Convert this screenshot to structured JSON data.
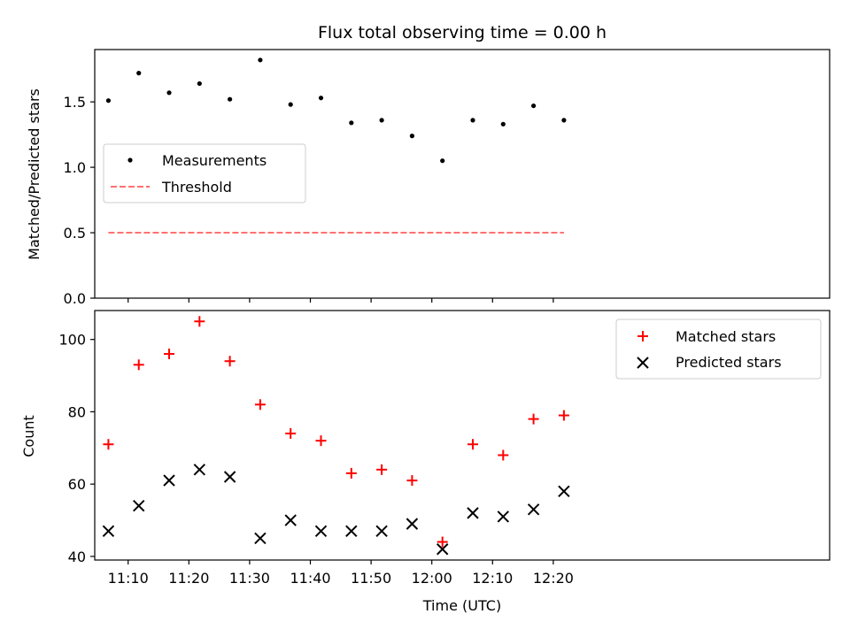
{
  "chart_data": [
    {
      "type": "scatter",
      "title": "Flux total observing time = 0.00 h",
      "xlabel": "",
      "ylabel": "Matched/Predicted stars",
      "xlim_minutes_of_day": [
        664.5,
        785.5
      ],
      "ylim": [
        0,
        1.9
      ],
      "yticks": [
        0.0,
        0.5,
        1.0,
        1.5
      ],
      "ytick_labels": [
        "0.0",
        "0.5",
        "1.0",
        "1.5"
      ],
      "x_time": [
        "11:06:45",
        "11:11:45",
        "11:16:45",
        "11:21:45",
        "11:26:45",
        "11:31:45",
        "11:36:45",
        "11:41:45",
        "11:46:45",
        "11:51:45",
        "11:56:45",
        "12:01:45",
        "12:06:45",
        "12:11:45",
        "12:16:45",
        "12:21:45"
      ],
      "series": [
        {
          "name": "Measurements",
          "marker": "dot",
          "color": "#000000",
          "values": [
            1.51,
            1.72,
            1.57,
            1.64,
            1.52,
            1.82,
            1.48,
            1.53,
            1.34,
            1.36,
            1.24,
            1.05,
            1.36,
            1.33,
            1.47,
            1.36
          ]
        },
        {
          "name": "Threshold",
          "marker": "dashed-line",
          "color": "#ff7070",
          "values": [
            0.5,
            0.5
          ]
        }
      ],
      "legend_position": "center-left",
      "grid": false
    },
    {
      "type": "scatter",
      "title": "",
      "xlabel": "Time (UTC)",
      "ylabel": "Count",
      "xlim_minutes_of_day": [
        664.5,
        785.5
      ],
      "ylim": [
        39,
        108
      ],
      "yticks": [
        40,
        60,
        80,
        100
      ],
      "ytick_labels": [
        "40",
        "60",
        "80",
        "100"
      ],
      "xticks": [
        "11:10",
        "11:20",
        "11:30",
        "11:40",
        "11:50",
        "12:00",
        "12:10",
        "12:20"
      ],
      "x_time": [
        "11:06:45",
        "11:11:45",
        "11:16:45",
        "11:21:45",
        "11:26:45",
        "11:31:45",
        "11:36:45",
        "11:41:45",
        "11:46:45",
        "11:51:45",
        "11:56:45",
        "12:01:45",
        "12:06:45",
        "12:11:45",
        "12:16:45",
        "12:21:45"
      ],
      "series": [
        {
          "name": "Matched stars",
          "marker": "plus",
          "color": "#ff0000",
          "values": [
            71,
            93,
            96,
            105,
            94,
            82,
            74,
            72,
            63,
            64,
            61,
            44,
            71,
            68,
            78,
            79
          ]
        },
        {
          "name": "Predicted stars",
          "marker": "x",
          "color": "#000000",
          "values": [
            47,
            54,
            61,
            64,
            62,
            45,
            50,
            47,
            47,
            47,
            49,
            42,
            52,
            51,
            53,
            58
          ]
        }
      ],
      "legend_position": "top-right",
      "grid": false
    }
  ]
}
